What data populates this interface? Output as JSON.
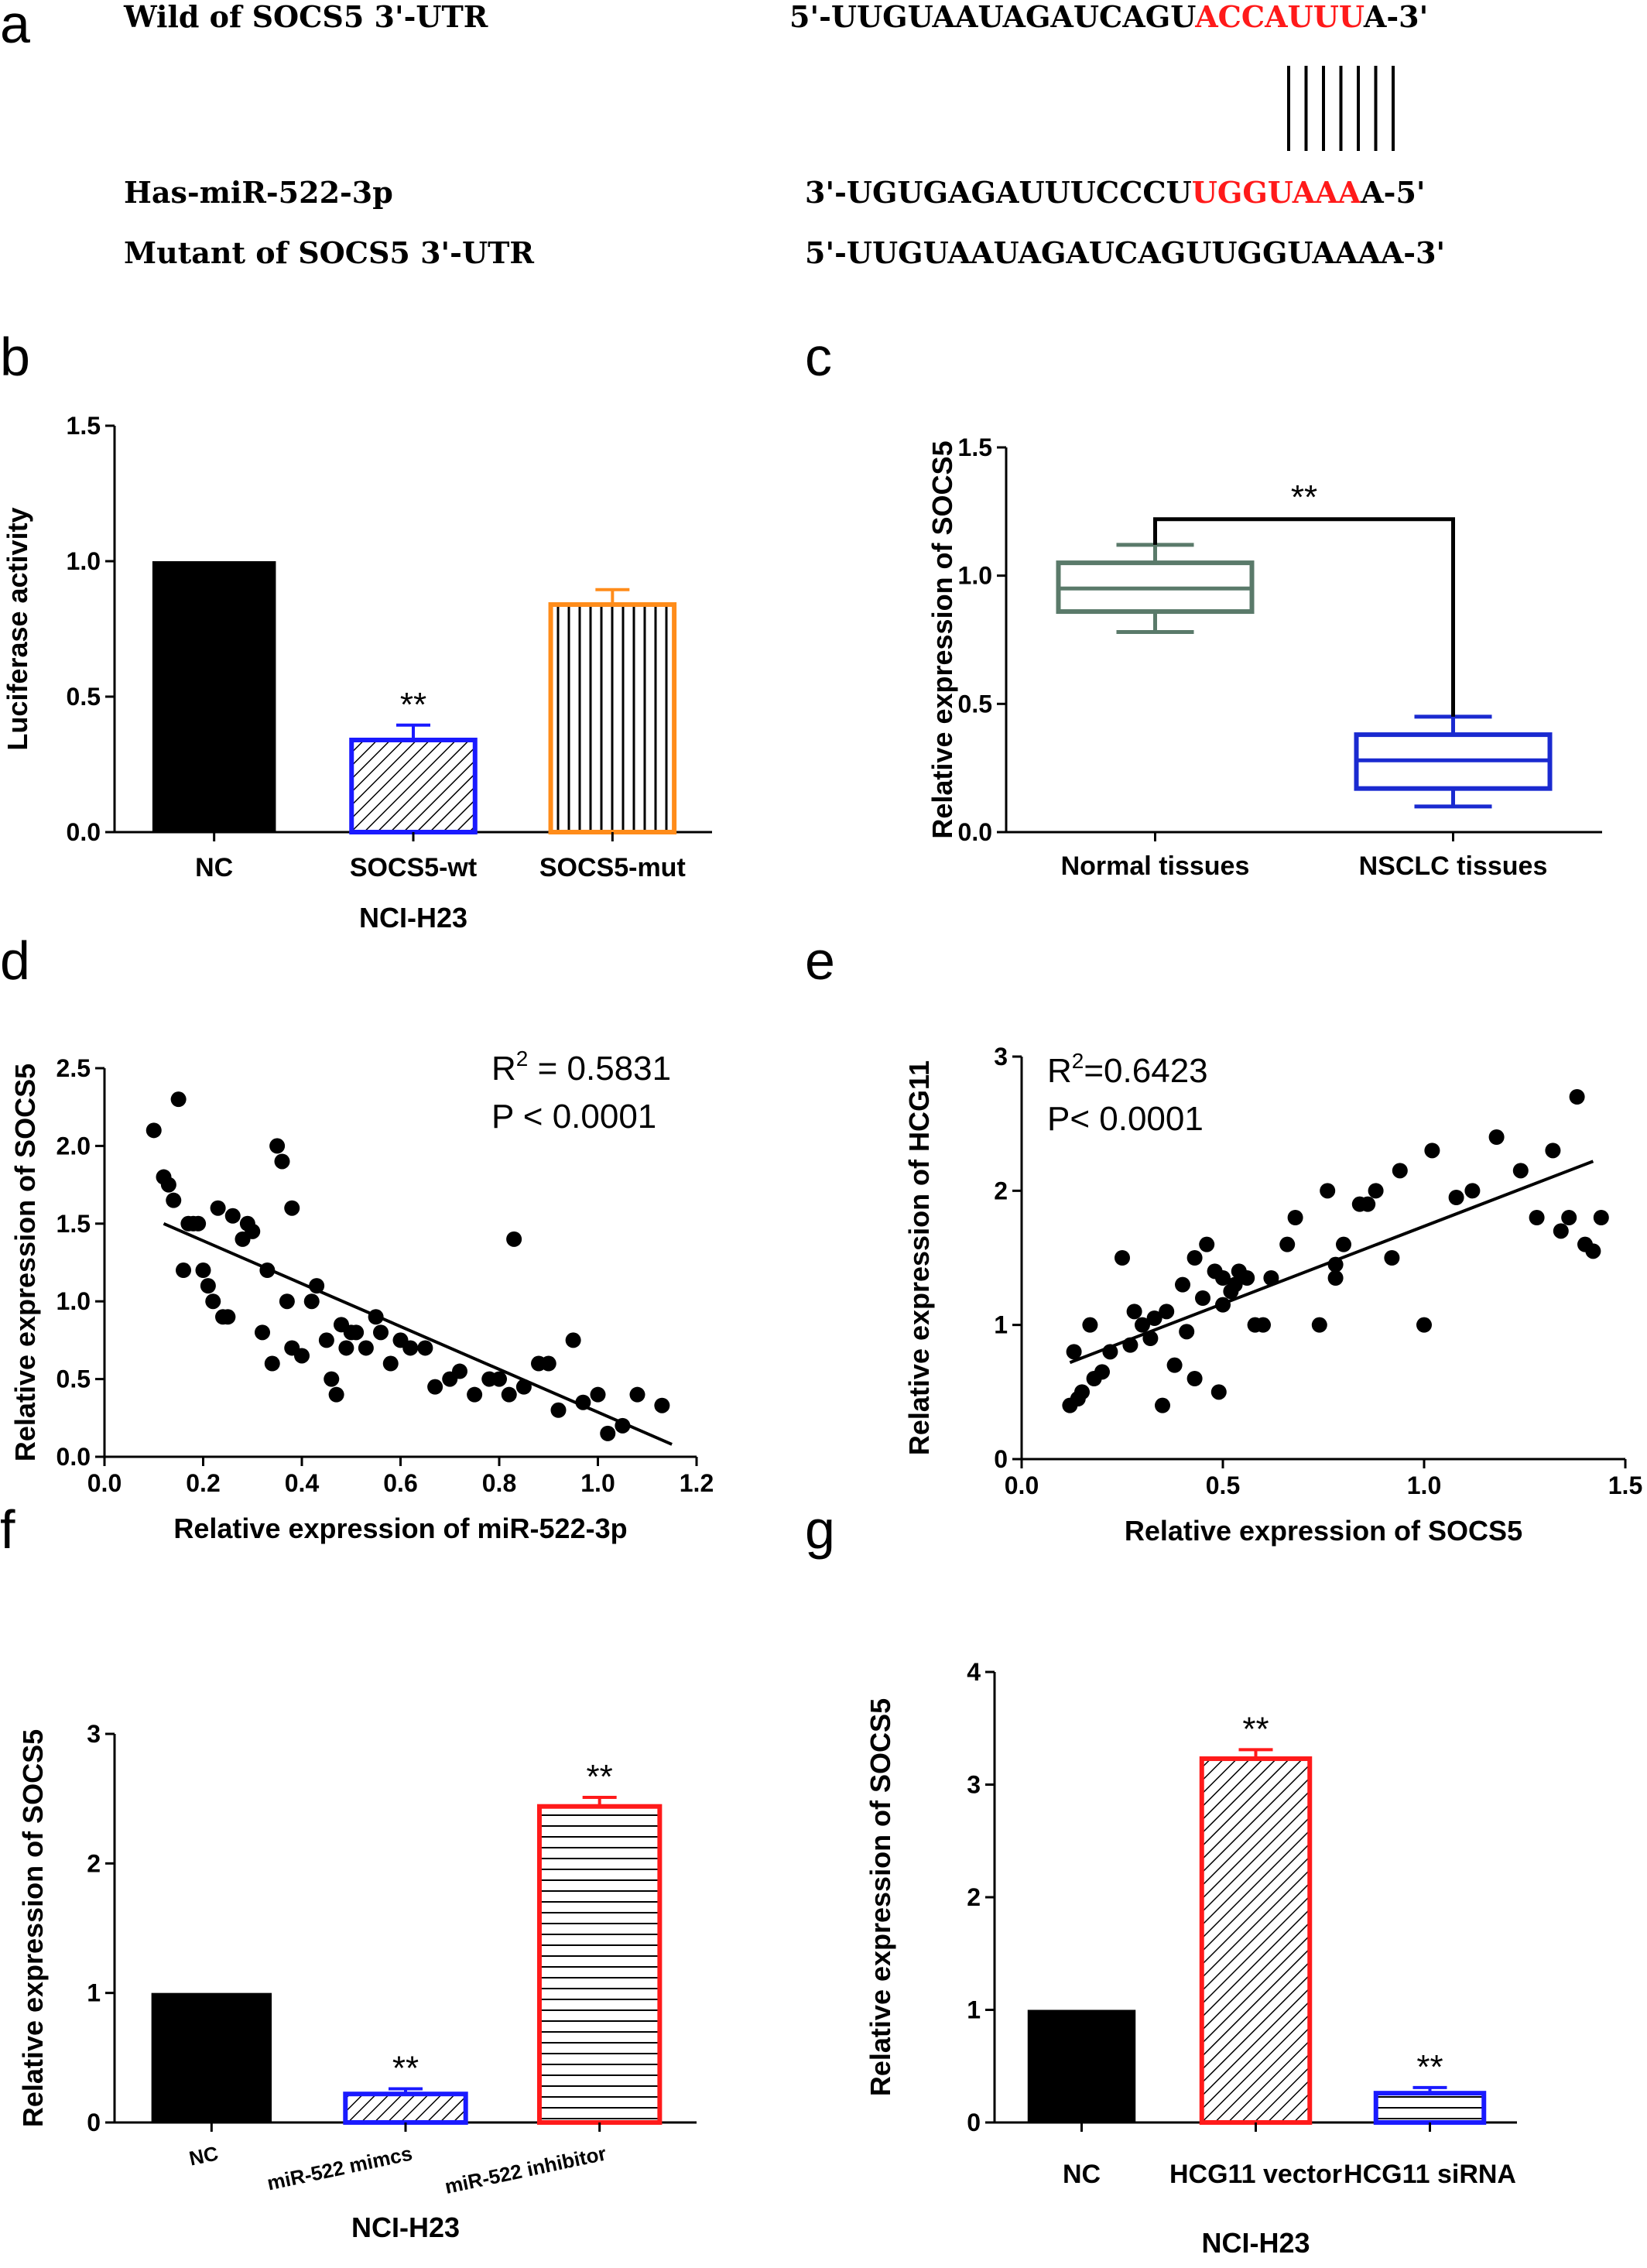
{
  "sequences": {
    "wild_label": "Wild of SOCS5 3'-UTR",
    "wild_seq_black": "5'-UUGUAAUAGAUCAGU",
    "wild_seq_red": "ACCAUUU",
    "wild_seq_end": "A-3'",
    "mir_label": "Has-miR-522-3p",
    "mir_seq_black": "3'-UGUGAGAUUUCCCU",
    "mir_seq_red": "UGGUAAA",
    "mir_seq_end": "A-5'",
    "mut_label": "Mutant of SOCS5 3'-UTR",
    "mut_seq": "5'-UUGUAAUAGAUCAGUUGGUAAAA-3'",
    "pair_count": 7
  },
  "colors": {
    "black": "#000000",
    "blue": "#1a1aff",
    "orange": "#ff8c1a",
    "red": "#ff1a1a",
    "gray_green": "#5a7a6a",
    "box_blue": "#1a2ad0"
  },
  "panels": {
    "a": "a",
    "b": "b",
    "c": "c",
    "d": "d",
    "e": "e",
    "f": "f",
    "g": "g"
  },
  "chart_data": [
    {
      "id": "b",
      "type": "bar",
      "categories": [
        "NC",
        "SOCS5-wt",
        "SOCS5-mut"
      ],
      "values": [
        1.0,
        0.34,
        0.84
      ],
      "errors": [
        0,
        0.055,
        0.055
      ],
      "bar_colors": [
        "#000000",
        "#1a1aff",
        "#ff8c1a"
      ],
      "fills": [
        "solid",
        "diagonal",
        "vertical"
      ],
      "significance": [
        "",
        "**",
        ""
      ],
      "ylabel": "Luciferase activity",
      "xlabel": "NCI-H23",
      "ylim": [
        0,
        1.5
      ],
      "yticks": [
        "0.0",
        "0.5",
        "1.0",
        "1.5"
      ]
    },
    {
      "id": "c",
      "type": "box",
      "categories": [
        "Normal  tissues",
        "NSCLC tissues"
      ],
      "boxes": [
        {
          "min": 0.78,
          "q1": 0.86,
          "median": 0.95,
          "q3": 1.05,
          "max": 1.12,
          "color": "#5a7a6a"
        },
        {
          "min": 0.1,
          "q1": 0.17,
          "median": 0.28,
          "q3": 0.38,
          "max": 0.45,
          "color": "#1a2ad0"
        }
      ],
      "significance": "**",
      "ylabel": "Relative expression of SOCS5",
      "ylim": [
        0,
        1.5
      ],
      "yticks": [
        "0.0",
        "0.5",
        "1.0",
        "1.5"
      ]
    },
    {
      "id": "d",
      "type": "scatter",
      "xlabel": "Relative expression of miR-522-3p",
      "ylabel": "Relative expression of SOCS5",
      "xlim": [
        0,
        1.2
      ],
      "ylim": [
        0,
        2.5
      ],
      "xticks": [
        "0.0",
        "0.2",
        "0.4",
        "0.6",
        "0.8",
        "1.0",
        "1.2"
      ],
      "yticks": [
        "0.0",
        "0.5",
        "1.0",
        "1.5",
        "2.0",
        "2.5"
      ],
      "r2_prefix": "R",
      "r2_sup": "2",
      "r2_value": " = 0.5831",
      "p_text": "P < 0.0001",
      "fit": [
        [
          0.12,
          1.5
        ],
        [
          1.15,
          0.08
        ]
      ],
      "points": [
        [
          0.1,
          2.1
        ],
        [
          0.12,
          1.8
        ],
        [
          0.13,
          1.75
        ],
        [
          0.14,
          1.65
        ],
        [
          0.15,
          2.3
        ],
        [
          0.16,
          1.2
        ],
        [
          0.17,
          1.5
        ],
        [
          0.18,
          1.5
        ],
        [
          0.19,
          1.5
        ],
        [
          0.2,
          1.2
        ],
        [
          0.21,
          1.1
        ],
        [
          0.22,
          1.0
        ],
        [
          0.23,
          1.6
        ],
        [
          0.24,
          0.9
        ],
        [
          0.25,
          0.9
        ],
        [
          0.26,
          1.55
        ],
        [
          0.28,
          1.4
        ],
        [
          0.29,
          1.5
        ],
        [
          0.3,
          1.45
        ],
        [
          0.32,
          0.8
        ],
        [
          0.33,
          1.2
        ],
        [
          0.34,
          0.6
        ],
        [
          0.35,
          2.0
        ],
        [
          0.36,
          1.9
        ],
        [
          0.37,
          1.0
        ],
        [
          0.38,
          1.6
        ],
        [
          0.38,
          0.7
        ],
        [
          0.4,
          0.65
        ],
        [
          0.42,
          1.0
        ],
        [
          0.43,
          1.1
        ],
        [
          0.45,
          0.75
        ],
        [
          0.46,
          0.5
        ],
        [
          0.47,
          0.4
        ],
        [
          0.48,
          0.85
        ],
        [
          0.49,
          0.7
        ],
        [
          0.5,
          0.8
        ],
        [
          0.51,
          0.8
        ],
        [
          0.53,
          0.7
        ],
        [
          0.55,
          0.9
        ],
        [
          0.56,
          0.8
        ],
        [
          0.58,
          0.6
        ],
        [
          0.6,
          0.75
        ],
        [
          0.62,
          0.7
        ],
        [
          0.65,
          0.7
        ],
        [
          0.67,
          0.45
        ],
        [
          0.7,
          0.5
        ],
        [
          0.72,
          0.55
        ],
        [
          0.75,
          0.4
        ],
        [
          0.78,
          0.5
        ],
        [
          0.8,
          0.5
        ],
        [
          0.82,
          0.4
        ],
        [
          0.83,
          1.4
        ],
        [
          0.85,
          0.45
        ],
        [
          0.88,
          0.6
        ],
        [
          0.9,
          0.6
        ],
        [
          0.92,
          0.3
        ],
        [
          0.95,
          0.75
        ],
        [
          0.97,
          0.35
        ],
        [
          1.0,
          0.4
        ],
        [
          1.02,
          0.15
        ],
        [
          1.05,
          0.2
        ],
        [
          1.08,
          0.4
        ],
        [
          1.13,
          0.33
        ]
      ]
    },
    {
      "id": "e",
      "type": "scatter",
      "xlabel": "Relative expression of SOCS5",
      "ylabel": "Relative expression of HCG11",
      "xlim": [
        0,
        1.5
      ],
      "ylim": [
        0,
        3
      ],
      "xticks": [
        "0.0",
        "0.5",
        "1.0",
        "1.5"
      ],
      "yticks": [
        "0",
        "1",
        "2",
        "3"
      ],
      "r2_prefix": "R",
      "r2_sup": "2",
      "r2_value": "=0.6423",
      "p_text": "P< 0.0001",
      "fit": [
        [
          0.12,
          0.72
        ],
        [
          1.42,
          2.22
        ]
      ],
      "points": [
        [
          0.12,
          0.4
        ],
        [
          0.13,
          0.8
        ],
        [
          0.14,
          0.45
        ],
        [
          0.15,
          0.5
        ],
        [
          0.17,
          1.0
        ],
        [
          0.18,
          0.6
        ],
        [
          0.2,
          0.65
        ],
        [
          0.22,
          0.8
        ],
        [
          0.25,
          1.5
        ],
        [
          0.27,
          0.85
        ],
        [
          0.28,
          1.1
        ],
        [
          0.3,
          1.0
        ],
        [
          0.32,
          0.9
        ],
        [
          0.33,
          1.05
        ],
        [
          0.35,
          0.4
        ],
        [
          0.36,
          1.1
        ],
        [
          0.38,
          0.7
        ],
        [
          0.4,
          1.3
        ],
        [
          0.41,
          0.95
        ],
        [
          0.43,
          1.5
        ],
        [
          0.43,
          0.6
        ],
        [
          0.45,
          1.2
        ],
        [
          0.46,
          1.6
        ],
        [
          0.48,
          1.4
        ],
        [
          0.49,
          0.5
        ],
        [
          0.5,
          1.15
        ],
        [
          0.5,
          1.35
        ],
        [
          0.52,
          1.25
        ],
        [
          0.53,
          1.3
        ],
        [
          0.54,
          1.4
        ],
        [
          0.56,
          1.35
        ],
        [
          0.58,
          1.0
        ],
        [
          0.6,
          1.0
        ],
        [
          0.62,
          1.35
        ],
        [
          0.66,
          1.6
        ],
        [
          0.68,
          1.8
        ],
        [
          0.74,
          1.0
        ],
        [
          0.76,
          2.0
        ],
        [
          0.78,
          1.35
        ],
        [
          0.78,
          1.45
        ],
        [
          0.8,
          1.6
        ],
        [
          0.84,
          1.9
        ],
        [
          0.86,
          1.9
        ],
        [
          0.88,
          2.0
        ],
        [
          0.92,
          1.5
        ],
        [
          0.94,
          2.15
        ],
        [
          1.0,
          1.0
        ],
        [
          1.02,
          2.3
        ],
        [
          1.08,
          1.95
        ],
        [
          1.12,
          2.0
        ],
        [
          1.18,
          2.4
        ],
        [
          1.24,
          2.15
        ],
        [
          1.28,
          1.8
        ],
        [
          1.32,
          2.3
        ],
        [
          1.34,
          1.7
        ],
        [
          1.36,
          1.8
        ],
        [
          1.38,
          2.7
        ],
        [
          1.4,
          1.6
        ],
        [
          1.42,
          1.55
        ],
        [
          1.44,
          1.8
        ]
      ]
    },
    {
      "id": "f",
      "type": "bar",
      "categories": [
        "NC",
        "miR-522 mimcs",
        "miR-522 inhibitor"
      ],
      "values": [
        1.0,
        0.22,
        2.44
      ],
      "errors": [
        0,
        0.04,
        0.07
      ],
      "bar_colors": [
        "#000000",
        "#1a1aff",
        "#ff1a1a"
      ],
      "fills": [
        "solid",
        "diagonal",
        "horizontal"
      ],
      "significance": [
        "",
        "**",
        "**"
      ],
      "ylabel": "Relative expression of SOCS5",
      "xlabel": "NCI-H23",
      "ylim": [
        0,
        3
      ],
      "yticks": [
        "0",
        "1",
        "2",
        "3"
      ]
    },
    {
      "id": "g",
      "type": "bar",
      "categories": [
        "NC",
        "HCG11 vector",
        "HCG11  siRNA"
      ],
      "values": [
        1.0,
        3.23,
        0.26
      ],
      "errors": [
        0,
        0.08,
        0.05
      ],
      "bar_colors": [
        "#000000",
        "#ff1a1a",
        "#1a1aff"
      ],
      "fills": [
        "solid",
        "diagonal",
        "horizontal"
      ],
      "significance": [
        "",
        "**",
        "**"
      ],
      "ylabel": "Relative expression of SOCS5",
      "xlabel": "NCI-H23",
      "ylim": [
        0,
        4
      ],
      "yticks": [
        "0",
        "1",
        "2",
        "3",
        "4"
      ]
    }
  ]
}
